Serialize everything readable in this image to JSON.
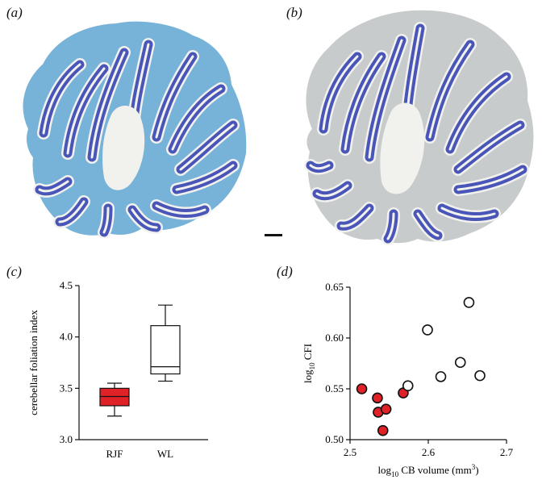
{
  "panels": {
    "a": "(a)",
    "b": "(b)",
    "c": "(c)",
    "d": "(d)"
  },
  "colors": {
    "cortex_purple": "#4a55b8",
    "white_matter": "#f1f1ed",
    "molecular_blue": "#77b3d8",
    "molecular_grey": "#c8cbcc",
    "rjf_fill": "#e02127",
    "wl_fill": "#ffffff"
  },
  "chart_data": [
    {
      "type": "box",
      "xlabel": "",
      "ylabel": "cerebellar foliation index",
      "ylim": [
        3.0,
        4.5
      ],
      "yticks": [
        "3.0",
        "3.5",
        "4.0",
        "4.5"
      ],
      "categories": [
        "RJF",
        "WL"
      ],
      "boxes": [
        {
          "name": "RJF",
          "min": 3.23,
          "q1": 3.33,
          "median": 3.42,
          "q3": 3.5,
          "max": 3.55,
          "color": "#e02127"
        },
        {
          "name": "WL",
          "min": 3.57,
          "q1": 3.64,
          "median": 3.71,
          "q3": 4.11,
          "max": 4.31,
          "color": "#ffffff"
        }
      ]
    },
    {
      "type": "scatter",
      "xlabel_main": "log",
      "xlabel_sub": "10",
      "xlabel_rest": " CB volume (mm",
      "xlabel_sup": "3",
      "xlabel_end": ")",
      "ylabel_main": "log",
      "ylabel_sub": "10",
      "ylabel_rest": " CFI",
      "xlim": [
        2.5,
        2.7
      ],
      "ylim": [
        0.5,
        0.65
      ],
      "xticks": [
        "2.5",
        "2.6",
        "2.7"
      ],
      "yticks": [
        "0.50",
        "0.55",
        "0.60",
        "0.65"
      ],
      "series": [
        {
          "name": "RJF",
          "color": "#e02127",
          "points": [
            [
              2.515,
              0.55
            ],
            [
              2.535,
              0.541
            ],
            [
              2.536,
              0.527
            ],
            [
              2.546,
              0.53
            ],
            [
              2.542,
              0.509
            ],
            [
              2.568,
              0.546
            ]
          ]
        },
        {
          "name": "WL",
          "color": "#ffffff",
          "points": [
            [
              2.574,
              0.553
            ],
            [
              2.599,
              0.608
            ],
            [
              2.616,
              0.562
            ],
            [
              2.641,
              0.576
            ],
            [
              2.652,
              0.635
            ],
            [
              2.666,
              0.563
            ]
          ]
        }
      ]
    }
  ]
}
